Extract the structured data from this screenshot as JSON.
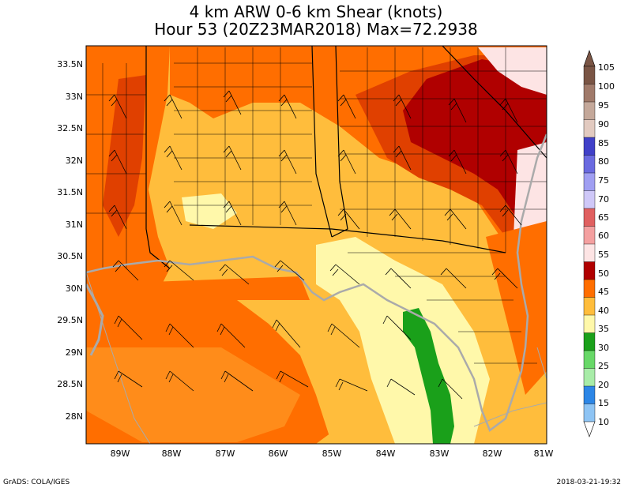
{
  "title_line1": "4 km ARW 0-6 km Shear (knots)",
  "title_line2": "Hour 53 (20Z23MAR2018) Max=72.2938",
  "lat_labels": [
    "33.5N",
    "33N",
    "32.5N",
    "32N",
    "31.5N",
    "31N",
    "30.5N",
    "30N",
    "29.5N",
    "29N",
    "28.5N",
    "28N"
  ],
  "lon_labels": [
    "89W",
    "88W",
    "87W",
    "86W",
    "85W",
    "84W",
    "83W",
    "82W",
    "81W"
  ],
  "colorbar_labels": [
    "105",
    "100",
    "95",
    "90",
    "85",
    "80",
    "75",
    "70",
    "65",
    "60",
    "55",
    "50",
    "45",
    "40",
    "35",
    "30",
    "25",
    "20",
    "15",
    "10"
  ],
  "colorbar_colors": [
    "#7a5545",
    "#a07a6a",
    "#c4a89a",
    "#e2cac0",
    "#4040c8",
    "#6a6ae0",
    "#a09ff2",
    "#cfc8f8",
    "#e06060",
    "#f4a0a0",
    "#fde4e4",
    "#b00000",
    "#ff6e00",
    "#ffbd3c",
    "#fff8aa",
    "#1aa01a",
    "#68d868",
    "#a8eca8",
    "#2c86e6",
    "#8ec4f4"
  ],
  "map_colors": {
    "c40": "#ffbd3c",
    "c45": "#ff8c1a",
    "c50": "#ff6e00",
    "c55": "#e04000",
    "c60": "#b00000",
    "c65": "#fde4e4",
    "c35": "#fff8aa",
    "c30": "#1aa01a",
    "land_outline": "#aaaaaa"
  },
  "footer_left": "GrADS: COLA/IGES",
  "footer_right": "2018-03-21-19:32"
}
